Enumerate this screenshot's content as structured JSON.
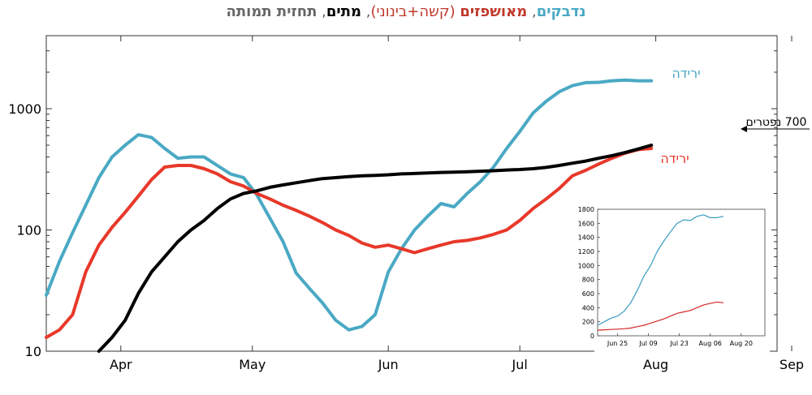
{
  "title": {
    "infected": "נדבקים",
    "sep1": ", ",
    "hospitalized": "מאושפזים",
    "hospitalized_sub": " (קשה+בינוני)",
    "sep2": ", ",
    "deaths": "מתים",
    "sep3": ", ",
    "forecast": "תחזית תמותה"
  },
  "colors": {
    "infected": "#4aa9c4",
    "hospitalized": "#e8382a",
    "deaths": "#000000",
    "axis": "#333333",
    "inset_infected": "#3a9cc0",
    "inset_hospitalized": "#d62728"
  },
  "chart_data": [
    {
      "type": "line",
      "scale": "log",
      "x_tick_labels": [
        "Apr",
        "May",
        "Jun",
        "Jul",
        "Aug",
        "Sep"
      ],
      "y_tick_labels": [
        "10",
        "100",
        "1000"
      ],
      "ylim": [
        10,
        4000
      ],
      "xlim": [
        "Mar 15",
        "Sep 1"
      ],
      "annotations": {
        "infected_label": "ירידה",
        "hospitalized_label": "ירידה",
        "arrow_label": "700 נפטרים"
      },
      "series": [
        {
          "key": "infected",
          "x": [
            0,
            3,
            6,
            9,
            12,
            15,
            18,
            21,
            24,
            27,
            30,
            33,
            36,
            39,
            42,
            45,
            48,
            51,
            54,
            57,
            60,
            63,
            66,
            69,
            72,
            75,
            78,
            81,
            84,
            87,
            90,
            93,
            96,
            99,
            102,
            105,
            108,
            111,
            114,
            117,
            120,
            123,
            126,
            129,
            132,
            135,
            138
          ],
          "y": [
            29,
            55,
            95,
            160,
            270,
            400,
            500,
            610,
            580,
            470,
            390,
            400,
            400,
            340,
            290,
            270,
            195,
            125,
            80,
            44,
            33,
            25,
            18,
            15,
            16,
            20,
            45,
            70,
            100,
            130,
            165,
            155,
            200,
            250,
            330,
            470,
            650,
            920,
            1150,
            1380,
            1550,
            1640,
            1650,
            1700,
            1720,
            1700,
            1700
          ]
        },
        {
          "key": "hospitalized",
          "x": [
            0,
            3,
            6,
            9,
            12,
            15,
            18,
            21,
            24,
            27,
            30,
            33,
            36,
            39,
            42,
            45,
            48,
            51,
            54,
            57,
            60,
            63,
            66,
            69,
            72,
            75,
            78,
            81,
            84,
            87,
            90,
            93,
            96,
            99,
            102,
            105,
            108,
            111,
            114,
            117,
            120,
            123,
            126,
            129,
            132,
            135,
            138
          ],
          "y": [
            13,
            15,
            20,
            45,
            75,
            105,
            140,
            190,
            260,
            330,
            340,
            340,
            320,
            290,
            250,
            230,
            200,
            180,
            160,
            145,
            130,
            115,
            100,
            90,
            78,
            72,
            75,
            70,
            65,
            70,
            75,
            80,
            82,
            86,
            92,
            100,
            120,
            150,
            180,
            220,
            280,
            310,
            350,
            390,
            430,
            460,
            470
          ]
        },
        {
          "key": "deaths",
          "x": [
            12,
            15,
            18,
            21,
            24,
            27,
            30,
            33,
            36,
            39,
            42,
            45,
            48,
            51,
            54,
            57,
            60,
            63,
            66,
            69,
            72,
            75,
            78,
            81,
            84,
            87,
            90,
            93,
            96,
            99,
            102,
            105,
            108,
            111,
            114,
            117,
            120,
            123,
            126,
            129,
            132,
            135,
            138
          ],
          "y": [
            10,
            13,
            18,
            30,
            45,
            60,
            80,
            100,
            120,
            150,
            180,
            200,
            210,
            225,
            235,
            245,
            255,
            265,
            270,
            275,
            280,
            282,
            285,
            290,
            292,
            295,
            298,
            300,
            302,
            305,
            308,
            312,
            315,
            320,
            328,
            340,
            355,
            370,
            390,
            410,
            435,
            465,
            500
          ]
        }
      ]
    },
    {
      "type": "line",
      "scale": "linear",
      "x_tick_labels": [
        "Jun 25",
        "Jul 09",
        "Jul 23",
        "Aug 06",
        "Aug 20"
      ],
      "y_tick_labels": [
        "0",
        "200",
        "400",
        "600",
        "800",
        "1000",
        "1200",
        "1400",
        "1600",
        "1800"
      ],
      "ylim": [
        0,
        1800
      ],
      "xlim": [
        "Jun 16",
        "Aug 31"
      ],
      "series": [
        {
          "key": "inset_infected",
          "x": [
            0,
            3,
            6,
            9,
            12,
            15,
            18,
            21,
            24,
            27,
            30,
            33,
            36,
            39,
            42,
            45,
            48,
            51,
            54,
            57
          ],
          "y": [
            150,
            200,
            250,
            280,
            350,
            470,
            650,
            850,
            1000,
            1200,
            1350,
            1480,
            1600,
            1650,
            1640,
            1700,
            1720,
            1680,
            1680,
            1700
          ]
        },
        {
          "key": "inset_hospitalized",
          "x": [
            0,
            3,
            6,
            9,
            12,
            15,
            18,
            21,
            24,
            27,
            30,
            33,
            36,
            39,
            42,
            45,
            48,
            51,
            54,
            57
          ],
          "y": [
            80,
            85,
            90,
            95,
            100,
            110,
            130,
            150,
            180,
            210,
            240,
            280,
            320,
            340,
            360,
            400,
            440,
            460,
            480,
            470
          ]
        }
      ]
    }
  ]
}
